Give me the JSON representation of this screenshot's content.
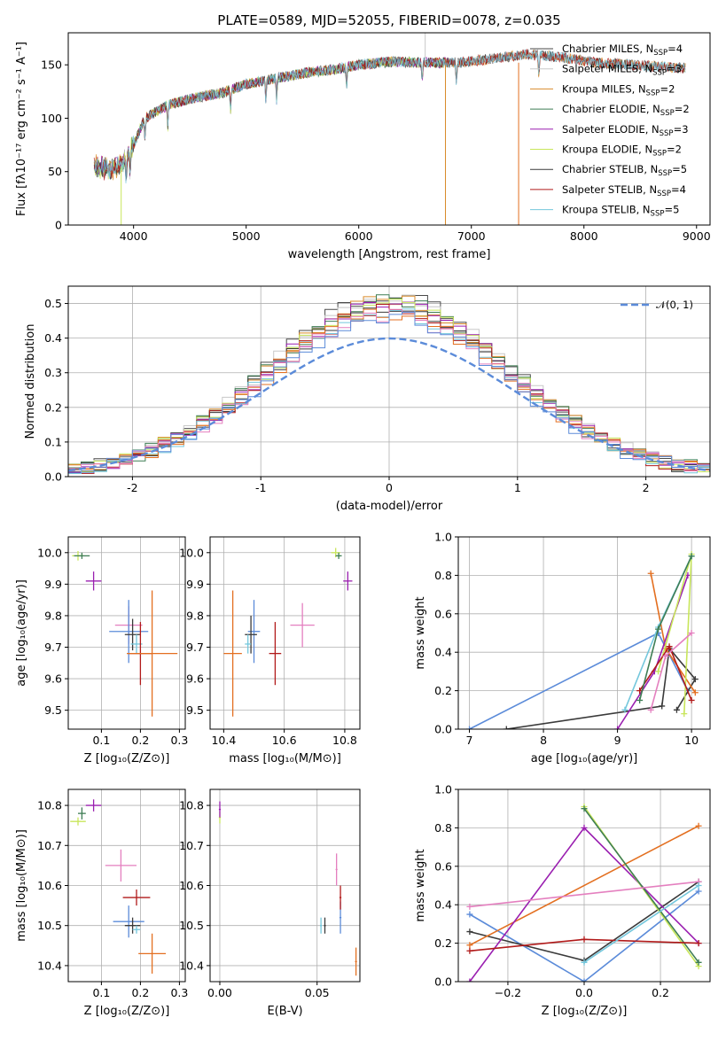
{
  "colors": {
    "ch_mi": "#4a4a4a",
    "sa_mi": "#c8c8c8",
    "kr_mi": "#d98b2b",
    "ch_el": "#3e7d54",
    "sa_el": "#9a1fb0",
    "kr_el": "#c8e65a",
    "ch_st": "#3a3a3a",
    "sa_st": "#b11a1a",
    "kr_st": "#74c7dc",
    "extra1": "#e36f20",
    "extra2": "#e47fbf",
    "extra3": "#5b8bd9"
  },
  "chart_data": [
    {
      "id": "spectrum",
      "type": "line",
      "title": "PLATE=0589, MJD=52055, FIBERID=0078, z=0.035",
      "xlabel": "wavelength [Angstrom, rest frame]",
      "ylabel": "Flux [fλ10⁻¹⁷ erg cm⁻² s⁻¹ A⁻¹]",
      "xlim": [
        3420,
        9120
      ],
      "ylim": [
        0,
        180
      ],
      "xticks": [
        4000,
        5000,
        6000,
        7000,
        8000,
        9000
      ],
      "yticks": [
        0,
        50,
        100,
        150
      ],
      "grid": false,
      "legend_position": "top-right",
      "continuum": {
        "x": [
          3650,
          3800,
          3900,
          4000,
          4100,
          4300,
          4500,
          4800,
          5000,
          5200,
          5500,
          5800,
          6000,
          6300,
          6600,
          6900,
          7200,
          7500,
          7800,
          8100,
          8400,
          8700,
          8900
        ],
        "y": [
          55,
          52,
          58,
          75,
          100,
          112,
          118,
          124,
          132,
          136,
          142,
          146,
          150,
          153,
          152,
          152,
          156,
          160,
          157,
          152,
          150,
          148,
          147
        ]
      },
      "series": [
        {
          "name": "Chabrier MILES, N_SSP=4",
          "legend_label": "Chabrier MILES, N",
          "legend_sub": "SSP",
          "legend_value": "=4",
          "color_key": "ch_mi",
          "range": [
            3650,
            8900
          ]
        },
        {
          "name": "Salpeter MILES, N_SSP=3",
          "legend_label": "Salpeter MILES, N",
          "legend_sub": "SSP",
          "legend_value": "=3",
          "color_key": "sa_mi",
          "range": [
            3650,
            8900
          ]
        },
        {
          "name": "Kroupa MILES, N_SSP=2",
          "legend_label": "Kroupa MILES, N",
          "legend_sub": "SSP",
          "legend_value": "=2",
          "color_key": "kr_mi",
          "range": [
            3650,
            8900
          ]
        },
        {
          "name": "Chabrier ELODIE, N_SSP=2",
          "legend_label": "Chabrier ELODIE, N",
          "legend_sub": "SSP",
          "legend_value": "=2",
          "color_key": "ch_el",
          "range": [
            3650,
            6800
          ]
        },
        {
          "name": "Salpeter ELODIE, N_SSP=3",
          "legend_label": "Salpeter ELODIE, N",
          "legend_sub": "SSP",
          "legend_value": "=3",
          "color_key": "sa_el",
          "range": [
            3650,
            6800
          ]
        },
        {
          "name": "Kroupa ELODIE, N_SSP=2",
          "legend_label": "Kroupa ELODIE, N",
          "legend_sub": "SSP",
          "legend_value": "=2",
          "color_key": "kr_el",
          "range": [
            3650,
            6800
          ]
        },
        {
          "name": "Chabrier STELIB, N_SSP=5",
          "legend_label": "Chabrier STELIB, N",
          "legend_sub": "SSP",
          "legend_value": "=5",
          "color_key": "ch_st",
          "range": [
            3650,
            8900
          ]
        },
        {
          "name": "Salpeter STELIB, N_SSP=4",
          "legend_label": "Salpeter STELIB, N",
          "legend_sub": "SSP",
          "legend_value": "=4",
          "color_key": "sa_st",
          "range": [
            3650,
            8900
          ]
        },
        {
          "name": "Kroupa STELIB, N_SSP=5",
          "legend_label": "Kroupa STELIB, N",
          "legend_sub": "SSP",
          "legend_value": "=5",
          "color_key": "kr_st",
          "range": [
            3650,
            8900
          ]
        }
      ]
    },
    {
      "id": "residuals",
      "type": "histogram",
      "xlabel": "(data-model)/error",
      "ylabel": "Normed distribution",
      "xlim": [
        -2.5,
        2.5
      ],
      "ylim": [
        0,
        0.55
      ],
      "xticks": [
        -2,
        -1,
        0,
        1,
        2
      ],
      "yticks": [
        0.0,
        0.1,
        0.2,
        0.3,
        0.4,
        0.5
      ],
      "grid": true,
      "legend_position": "top-right",
      "reference": {
        "name": "𝒩(0, 1)",
        "mean": 0,
        "sigma": 1,
        "color_key": "extra3"
      },
      "bin_width": 0.1,
      "series_colors": [
        "ch_mi",
        "sa_mi",
        "kr_mi",
        "ch_el",
        "sa_el",
        "kr_el",
        "ch_st",
        "sa_st",
        "kr_st",
        "extra1",
        "extra2",
        "extra3"
      ]
    },
    {
      "id": "age_vs_Z",
      "type": "errorbar",
      "xlabel": "Z [log₁₀(Z/Z⊙)]",
      "ylabel": "age  [log₁₀(age/yr)]",
      "xlim": [
        0.015,
        0.315
      ],
      "ylim": [
        9.44,
        10.05
      ],
      "xticks": [
        0.1,
        0.2,
        0.3
      ],
      "yticks": [
        9.5,
        9.6,
        9.7,
        9.8,
        9.9,
        10.0
      ],
      "grid": true,
      "points": [
        {
          "x": 0.04,
          "y": 9.99,
          "xerr": 0.015,
          "yerr": 0.015,
          "color_key": "kr_el"
        },
        {
          "x": 0.05,
          "y": 9.99,
          "xerr": 0.02,
          "yerr": 0.01,
          "color_key": "ch_el"
        },
        {
          "x": 0.08,
          "y": 9.91,
          "xerr": 0.02,
          "yerr": 0.03,
          "color_key": "sa_el"
        },
        {
          "x": 0.17,
          "y": 9.77,
          "xerr": 0.035,
          "yerr": 0.06,
          "color_key": "extra2"
        },
        {
          "x": 0.17,
          "y": 9.75,
          "xerr": 0.05,
          "yerr": 0.1,
          "color_key": "extra3"
        },
        {
          "x": 0.18,
          "y": 9.74,
          "xerr": 0.02,
          "yerr": 0.05,
          "color_key": "ch_st"
        },
        {
          "x": 0.19,
          "y": 9.71,
          "xerr": 0.015,
          "yerr": 0.03,
          "color_key": "kr_st"
        },
        {
          "x": 0.2,
          "y": 9.68,
          "xerr": 0.03,
          "yerr": 0.1,
          "color_key": "sa_st"
        },
        {
          "x": 0.23,
          "y": 9.68,
          "xerr": 0.065,
          "yerr": 0.2,
          "color_key": "extra1"
        }
      ]
    },
    {
      "id": "age_vs_mass",
      "type": "errorbar",
      "xlabel": "mass [log₁₀(M/M⊙)]",
      "ylabel": "",
      "xlim": [
        10.355,
        10.85
      ],
      "ylim": [
        9.44,
        10.05
      ],
      "xticks": [
        10.4,
        10.6,
        10.8
      ],
      "xtick_labels": [
        "10.4",
        "10.6",
        "10.8"
      ],
      "yticks": [
        9.5,
        9.6,
        9.7,
        9.8,
        9.9,
        10.0
      ],
      "grid": true,
      "points": [
        {
          "x": 10.77,
          "y": 10.0,
          "xerr": 0.015,
          "yerr": 0.015,
          "color_key": "kr_el"
        },
        {
          "x": 10.78,
          "y": 9.99,
          "xerr": 0.01,
          "yerr": 0.01,
          "color_key": "ch_el"
        },
        {
          "x": 10.81,
          "y": 9.91,
          "xerr": 0.015,
          "yerr": 0.03,
          "color_key": "sa_el"
        },
        {
          "x": 10.66,
          "y": 9.77,
          "xerr": 0.04,
          "yerr": 0.07,
          "color_key": "extra2"
        },
        {
          "x": 10.5,
          "y": 9.75,
          "xerr": 0.02,
          "yerr": 0.1,
          "color_key": "extra3"
        },
        {
          "x": 10.49,
          "y": 9.74,
          "xerr": 0.02,
          "yerr": 0.06,
          "color_key": "ch_st"
        },
        {
          "x": 10.48,
          "y": 9.71,
          "xerr": 0.01,
          "yerr": 0.03,
          "color_key": "kr_st"
        },
        {
          "x": 10.57,
          "y": 9.68,
          "xerr": 0.02,
          "yerr": 0.1,
          "color_key": "sa_st"
        },
        {
          "x": 10.43,
          "y": 9.68,
          "xerr": 0.03,
          "yerr": 0.2,
          "color_key": "extra1"
        }
      ]
    },
    {
      "id": "weight_vs_age",
      "type": "line",
      "xlabel": "age  [log₁₀(age/yr)]",
      "ylabel": "mass weight",
      "xlim": [
        6.85,
        10.25
      ],
      "ylim": [
        0,
        1.0
      ],
      "xticks": [
        7,
        8,
        9,
        10
      ],
      "yticks": [
        0.0,
        0.2,
        0.4,
        0.6,
        0.8,
        1.0
      ],
      "grid": true,
      "series": [
        {
          "color_key": "extra3",
          "x": [
            7.0,
            9.55,
            9.95
          ],
          "y": [
            0.0,
            0.5,
            0.2
          ]
        },
        {
          "color_key": "ch_st",
          "x": [
            7.5,
            9.6,
            9.7,
            10.05,
            9.8
          ],
          "y": [
            0.0,
            0.12,
            0.42,
            0.26,
            0.1
          ]
        },
        {
          "color_key": "extra1",
          "x": [
            9.45,
            9.65,
            10.05
          ],
          "y": [
            0.81,
            0.42,
            0.19
          ]
        },
        {
          "color_key": "sa_el",
          "x": [
            9.0,
            9.5,
            9.95
          ],
          "y": [
            0.0,
            0.3,
            0.8
          ]
        },
        {
          "color_key": "kr_el",
          "x": [
            9.55,
            10.0,
            9.9
          ],
          "y": [
            0.3,
            0.91,
            0.08
          ]
        },
        {
          "color_key": "sa_st",
          "x": [
            9.3,
            9.7,
            10.0
          ],
          "y": [
            0.2,
            0.43,
            0.15
          ]
        },
        {
          "color_key": "kr_st",
          "x": [
            9.1,
            9.55,
            10.0
          ],
          "y": [
            0.1,
            0.53,
            0.9
          ]
        },
        {
          "color_key": "ch_el",
          "x": [
            9.3,
            9.55,
            10.0
          ],
          "y": [
            0.15,
            0.52,
            0.9
          ]
        },
        {
          "color_key": "extra2",
          "x": [
            9.45,
            9.65,
            10.0
          ],
          "y": [
            0.1,
            0.38,
            0.5
          ]
        }
      ]
    },
    {
      "id": "mass_vs_Z",
      "type": "errorbar",
      "xlabel": "Z [log₁₀(Z/Z⊙)]",
      "ylabel": "mass [log₁₀(M/M⊙)]",
      "xlim": [
        0.015,
        0.315
      ],
      "ylim": [
        10.36,
        10.84
      ],
      "xticks": [
        0.1,
        0.2,
        0.3
      ],
      "yticks": [
        10.4,
        10.5,
        10.6,
        10.7,
        10.8
      ],
      "grid": true,
      "points": [
        {
          "x": 0.04,
          "y": 10.76,
          "xerr": 0.02,
          "yerr": 0.01,
          "color_key": "kr_el"
        },
        {
          "x": 0.05,
          "y": 10.78,
          "xerr": 0.01,
          "yerr": 0.015,
          "color_key": "ch_el"
        },
        {
          "x": 0.08,
          "y": 10.8,
          "xerr": 0.02,
          "yerr": 0.015,
          "color_key": "sa_el"
        },
        {
          "x": 0.15,
          "y": 10.65,
          "xerr": 0.04,
          "yerr": 0.04,
          "color_key": "extra2"
        },
        {
          "x": 0.17,
          "y": 10.51,
          "xerr": 0.04,
          "yerr": 0.04,
          "color_key": "extra3"
        },
        {
          "x": 0.18,
          "y": 10.5,
          "xerr": 0.02,
          "yerr": 0.02,
          "color_key": "ch_st"
        },
        {
          "x": 0.19,
          "y": 10.49,
          "xerr": 0.01,
          "yerr": 0.01,
          "color_key": "kr_st"
        },
        {
          "x": 0.19,
          "y": 10.57,
          "xerr": 0.035,
          "yerr": 0.02,
          "color_key": "sa_st"
        },
        {
          "x": 0.23,
          "y": 10.43,
          "xerr": 0.035,
          "yerr": 0.05,
          "color_key": "extra1"
        }
      ]
    },
    {
      "id": "mass_vs_ebv",
      "type": "errorbar",
      "xlabel": "E(B-V)",
      "ylabel": "",
      "xlim": [
        -0.005,
        0.072
      ],
      "ylim": [
        10.36,
        10.84
      ],
      "xticks": [
        0.0,
        0.05
      ],
      "xtick_labels": [
        "0.00",
        "0.05"
      ],
      "yticks": [
        10.4,
        10.5,
        10.6,
        10.7,
        10.8
      ],
      "grid": true,
      "points": [
        {
          "x": 0.0,
          "y": 10.77,
          "xerr": 0.0005,
          "yerr": 0.015,
          "color_key": "kr_el"
        },
        {
          "x": 0.0,
          "y": 10.79,
          "xerr": 0.0005,
          "yerr": 0.02,
          "color_key": "sa_el"
        },
        {
          "x": 0.06,
          "y": 10.64,
          "xerr": 0.0005,
          "yerr": 0.04,
          "color_key": "extra2"
        },
        {
          "x": 0.052,
          "y": 10.5,
          "xerr": 0.0005,
          "yerr": 0.02,
          "color_key": "kr_st"
        },
        {
          "x": 0.054,
          "y": 10.5,
          "xerr": 0.0005,
          "yerr": 0.02,
          "color_key": "ch_st"
        },
        {
          "x": 0.062,
          "y": 10.52,
          "xerr": 0.0005,
          "yerr": 0.04,
          "color_key": "extra3"
        },
        {
          "x": 0.062,
          "y": 10.57,
          "xerr": 0.0005,
          "yerr": 0.03,
          "color_key": "sa_st"
        },
        {
          "x": 0.07,
          "y": 10.41,
          "xerr": 0.0005,
          "yerr": 0.035,
          "color_key": "extra1"
        }
      ]
    },
    {
      "id": "weight_vs_Z",
      "type": "line",
      "xlabel": "Z [log₁₀(Z/Z⊙)]",
      "ylabel": "mass weight",
      "xlim": [
        -0.33,
        0.33
      ],
      "ylim": [
        0,
        1.0
      ],
      "xticks": [
        -0.2,
        0.0,
        0.2
      ],
      "xtick_labels": [
        "−0.2",
        "0.0",
        "0.2"
      ],
      "yticks": [
        0.0,
        0.2,
        0.4,
        0.6,
        0.8,
        1.0
      ],
      "grid": true,
      "series": [
        {
          "color_key": "extra3",
          "x": [
            -0.3,
            0.0,
            0.3
          ],
          "y": [
            0.35,
            0.0,
            0.47
          ]
        },
        {
          "color_key": "ch_st",
          "x": [
            -0.3,
            0.0,
            0.3
          ],
          "y": [
            0.26,
            0.11,
            0.52
          ]
        },
        {
          "color_key": "extra1",
          "x": [
            -0.3,
            0.3
          ],
          "y": [
            0.19,
            0.81
          ]
        },
        {
          "color_key": "sa_el",
          "x": [
            -0.3,
            0.0,
            0.3
          ],
          "y": [
            0.0,
            0.8,
            0.2
          ]
        },
        {
          "color_key": "kr_el",
          "x": [
            0.0,
            0.3
          ],
          "y": [
            0.91,
            0.08
          ]
        },
        {
          "color_key": "ch_el",
          "x": [
            0.0,
            0.3
          ],
          "y": [
            0.9,
            0.1
          ]
        },
        {
          "color_key": "sa_st",
          "x": [
            -0.3,
            0.0,
            0.3
          ],
          "y": [
            0.16,
            0.22,
            0.2
          ]
        },
        {
          "color_key": "extra2",
          "x": [
            -0.3,
            0.3
          ],
          "y": [
            0.39,
            0.52
          ]
        },
        {
          "color_key": "kr_st",
          "x": [
            0.0,
            0.3
          ],
          "y": [
            0.1,
            0.5
          ]
        }
      ]
    }
  ]
}
